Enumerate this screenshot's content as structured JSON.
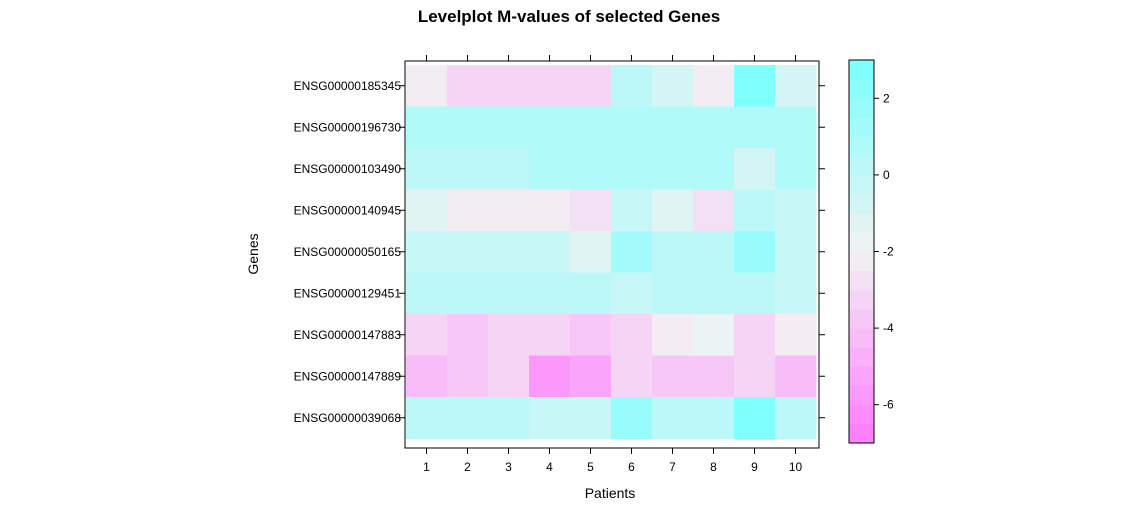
{
  "chart_data": {
    "type": "heatmap",
    "title": "Levelplot M-values of selected Genes",
    "xlabel": "Patients",
    "ylabel": "Genes",
    "x_categories": [
      "1",
      "2",
      "3",
      "4",
      "5",
      "6",
      "7",
      "8",
      "9",
      "10"
    ],
    "y_categories_top_to_bottom": [
      "ENSG00000185345",
      "ENSG00000196730",
      "ENSG00000103490",
      "ENSG00000140945",
      "ENSG00000050165",
      "ENSG00000129451",
      "ENSG00000147883",
      "ENSG00000147889",
      "ENSG00000039068"
    ],
    "values": [
      [
        -2.3,
        -3.3,
        -3.3,
        -3.3,
        -3.3,
        0.2,
        -0.8,
        -2.2,
        2.5,
        -1.0
      ],
      [
        0.6,
        0.6,
        0.6,
        0.6,
        0.6,
        0.6,
        0.6,
        0.6,
        0.6,
        0.6
      ],
      [
        0.3,
        0.3,
        0.3,
        0.8,
        0.8,
        0.8,
        0.6,
        0.6,
        -0.8,
        0.6
      ],
      [
        -1.2,
        -2.2,
        -2.2,
        -2.3,
        -2.8,
        -0.5,
        -1.2,
        -2.6,
        0.4,
        -0.5
      ],
      [
        -0.2,
        -0.2,
        -0.2,
        -0.2,
        -1.2,
        1.2,
        0.3,
        0.3,
        1.6,
        -0.2
      ],
      [
        0.3,
        0.3,
        0.3,
        0.3,
        0.3,
        -0.5,
        0.3,
        0.3,
        0.3,
        -0.5
      ],
      [
        -3.1,
        -3.9,
        -3.3,
        -3.3,
        -3.9,
        -3.3,
        -2.4,
        -1.9,
        -3.3,
        -2.4
      ],
      [
        -4.3,
        -3.9,
        -3.1,
        -5.8,
        -5.2,
        -3.1,
        -3.8,
        -3.8,
        -3.1,
        -4.4
      ],
      [
        0.3,
        0.3,
        0.3,
        -0.5,
        -0.5,
        1.6,
        0.3,
        0.3,
        2.5,
        0.3
      ]
    ],
    "colorkey": {
      "breaks": [
        -7,
        -6.5,
        -6,
        -5.5,
        -5,
        -4.5,
        -4,
        -3.5,
        -3,
        -2.5,
        -2,
        -1.5,
        -1,
        -0.5,
        0,
        0.5,
        1,
        1.5,
        2,
        2.5,
        3
      ],
      "tick_values": [
        -6,
        -4,
        -2,
        0,
        2
      ],
      "tick_labels": [
        "-6",
        "-4",
        "-2",
        "0",
        "2"
      ],
      "low_color": "#FF80FF",
      "mid_color": "#F2F2F2",
      "high_color": "#80FFFF"
    },
    "grid": false
  }
}
